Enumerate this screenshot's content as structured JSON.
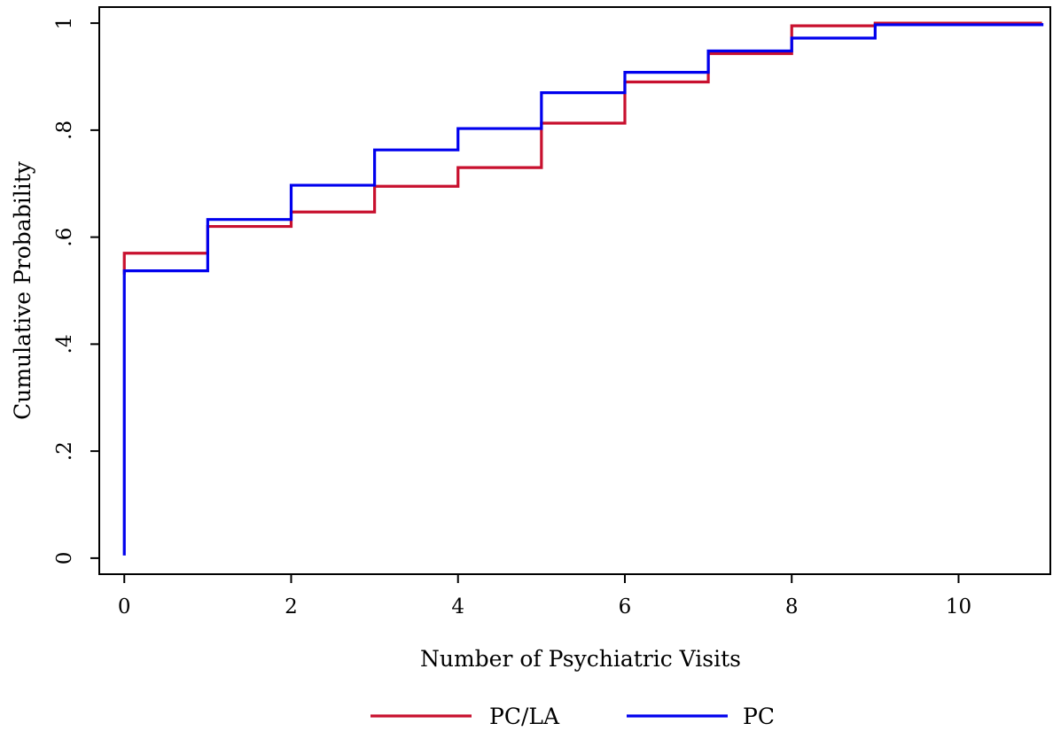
{
  "chart_data": {
    "type": "line",
    "step": "post",
    "title": "",
    "xlabel": "Number of Psychiatric Visits",
    "ylabel": "Cumulative Probability",
    "xlim": [
      -0.3,
      11.1
    ],
    "ylim": [
      -0.03,
      1.03
    ],
    "xticks": [
      0,
      2,
      4,
      6,
      8,
      10
    ],
    "xtick_labels": [
      "0",
      "2",
      "4",
      "6",
      "8",
      "10"
    ],
    "yticks": [
      0,
      0.2,
      0.4,
      0.6,
      0.8,
      1
    ],
    "ytick_labels": [
      "0",
      ".2",
      ".4",
      ".6",
      ".8",
      "1"
    ],
    "grid": false,
    "legend_position": "bottom",
    "series": [
      {
        "name": "PC/LA",
        "color": "#c8102e",
        "x": [
          0,
          1,
          2,
          3,
          4,
          5,
          6,
          7,
          8,
          9,
          11
        ],
        "y": [
          0.57,
          0.62,
          0.647,
          0.695,
          0.73,
          0.813,
          0.89,
          0.943,
          0.995,
          1.0,
          1.0
        ],
        "x_start": 0,
        "y_start": 0.53
      },
      {
        "name": "PC",
        "color": "#0000ee",
        "x": [
          0,
          1,
          2,
          3,
          4,
          5,
          6,
          7,
          8,
          9,
          11
        ],
        "y": [
          0.537,
          0.633,
          0.697,
          0.763,
          0.803,
          0.87,
          0.908,
          0.948,
          0.972,
          0.997,
          1.0
        ],
        "x_start": 0,
        "y_start": 0.005
      }
    ]
  }
}
